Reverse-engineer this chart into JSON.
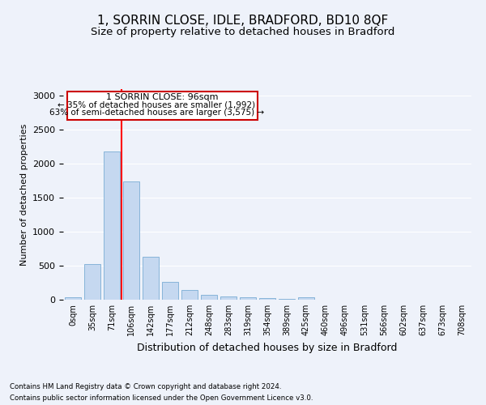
{
  "title_line1": "1, SORRIN CLOSE, IDLE, BRADFORD, BD10 8QF",
  "title_line2": "Size of property relative to detached houses in Bradford",
  "xlabel": "Distribution of detached houses by size in Bradford",
  "ylabel": "Number of detached properties",
  "categories": [
    "0sqm",
    "35sqm",
    "71sqm",
    "106sqm",
    "142sqm",
    "177sqm",
    "212sqm",
    "248sqm",
    "283sqm",
    "319sqm",
    "354sqm",
    "389sqm",
    "425sqm",
    "460sqm",
    "496sqm",
    "531sqm",
    "566sqm",
    "602sqm",
    "637sqm",
    "673sqm",
    "708sqm"
  ],
  "values": [
    30,
    520,
    2185,
    1735,
    630,
    265,
    140,
    70,
    50,
    35,
    20,
    15,
    40,
    5,
    5,
    0,
    0,
    0,
    0,
    0,
    0
  ],
  "bar_color": "#c5d8f0",
  "bar_edge_color": "#7aadd4",
  "red_line_x": 2.5,
  "annotation_line1": "1 SORRIN CLOSE: 96sqm",
  "annotation_line2": "← 35% of detached houses are smaller (1,992)",
  "annotation_line3": "63% of semi-detached houses are larger (3,575) →",
  "annotation_box_color": "#ffffff",
  "annotation_box_edge": "#cc0000",
  "footnote_line1": "Contains HM Land Registry data © Crown copyright and database right 2024.",
  "footnote_line2": "Contains public sector information licensed under the Open Government Licence v3.0.",
  "background_color": "#eef2fa",
  "ylim": [
    0,
    3100
  ],
  "yticks": [
    0,
    500,
    1000,
    1500,
    2000,
    2500,
    3000
  ],
  "grid_color": "#ffffff",
  "title_fontsize": 11,
  "subtitle_fontsize": 9.5
}
